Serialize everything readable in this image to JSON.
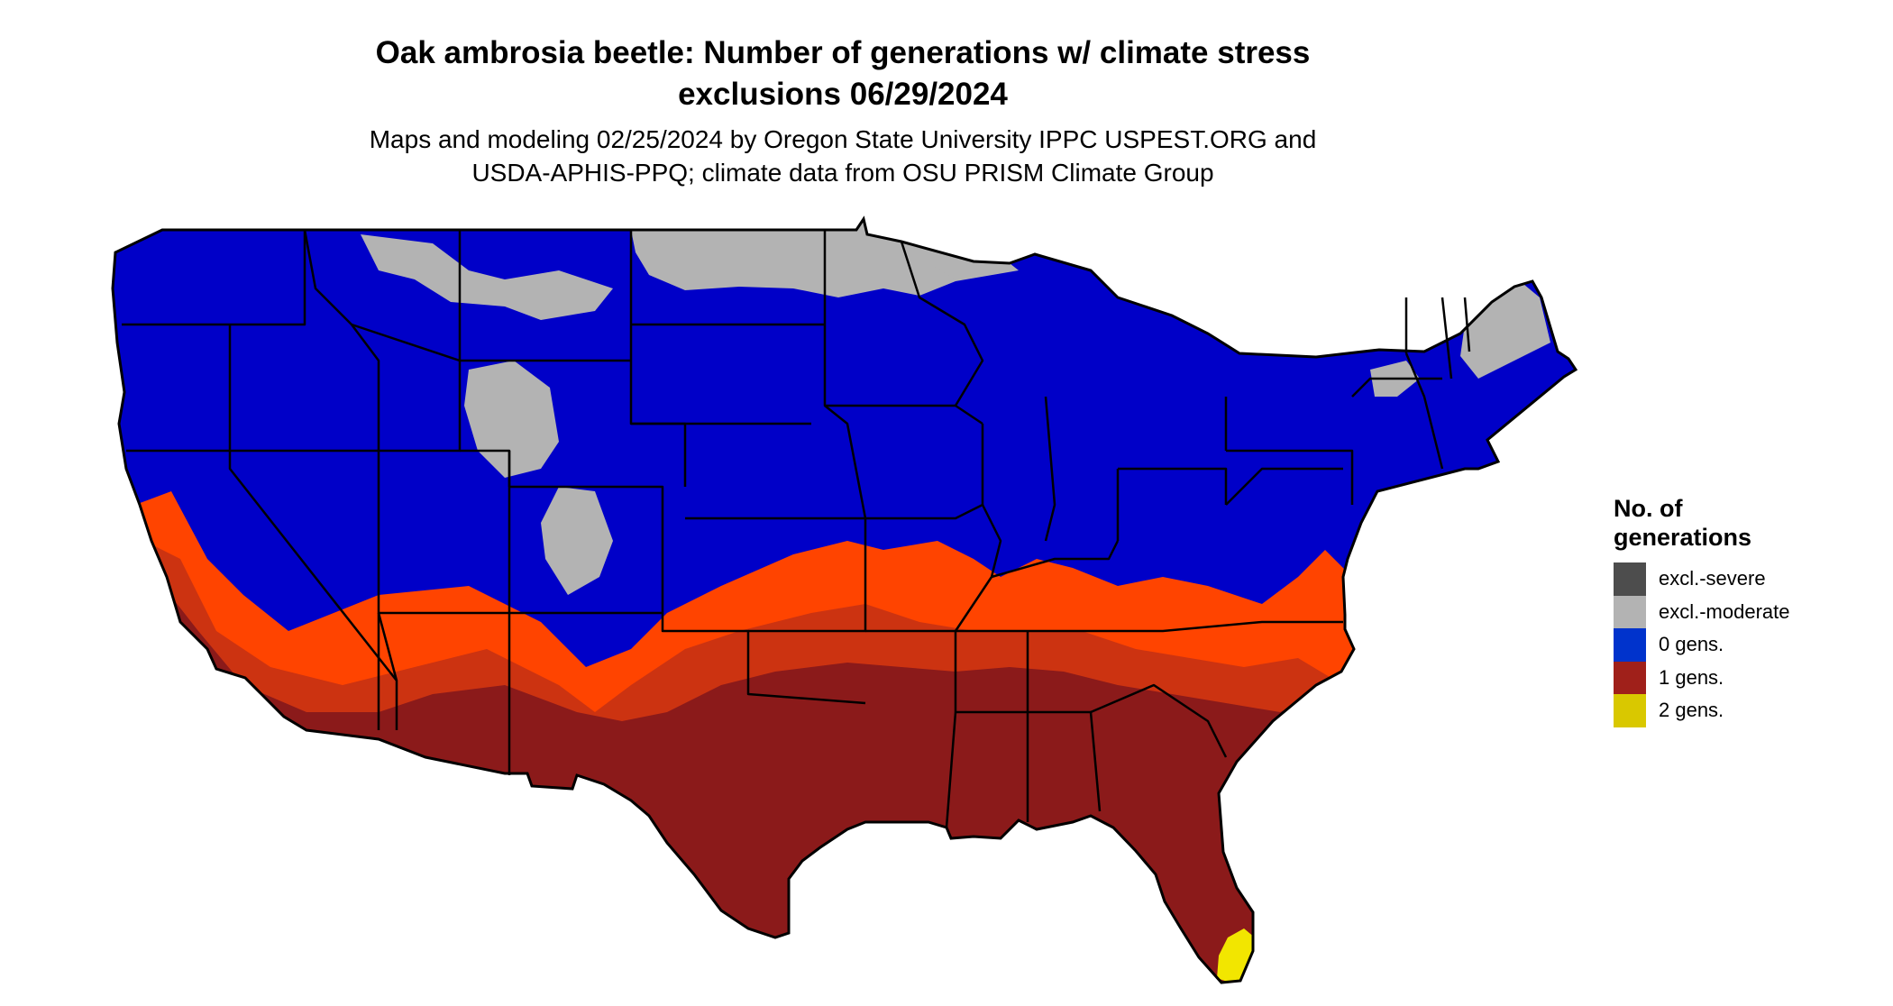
{
  "title_line1": "Oak ambrosia beetle: Number of generations w/ climate stress",
  "title_line2": "exclusions 06/29/2024",
  "subtitle_line1": "Maps and modeling 02/25/2024 by Oregon State University IPPC USPEST.ORG and",
  "subtitle_line2": "USDA-APHIS-PPQ; climate data from OSU PRISM Climate Group",
  "legend": {
    "title_line1": "No. of",
    "title_line2": "generations",
    "items": [
      {
        "label": "excl.-severe",
        "color": "#4d4d4d"
      },
      {
        "label": "excl.-moderate",
        "color": "#b3b3b3"
      },
      {
        "label": "0 gens.",
        "color": "#0033cc"
      },
      {
        "label": "1 gens.",
        "color": "#a0201a"
      },
      {
        "label": "2 gens.",
        "color": "#d9c800"
      }
    ]
  },
  "map_colors": {
    "zero_gens": "#0000c8",
    "moderate_exclusion": "#b3b3b3",
    "transition": "#ff4400",
    "transition_mid": "#cc3311",
    "one_gen": "#8b1a1a",
    "two_gens": "#f2e600",
    "border": "#000000"
  }
}
